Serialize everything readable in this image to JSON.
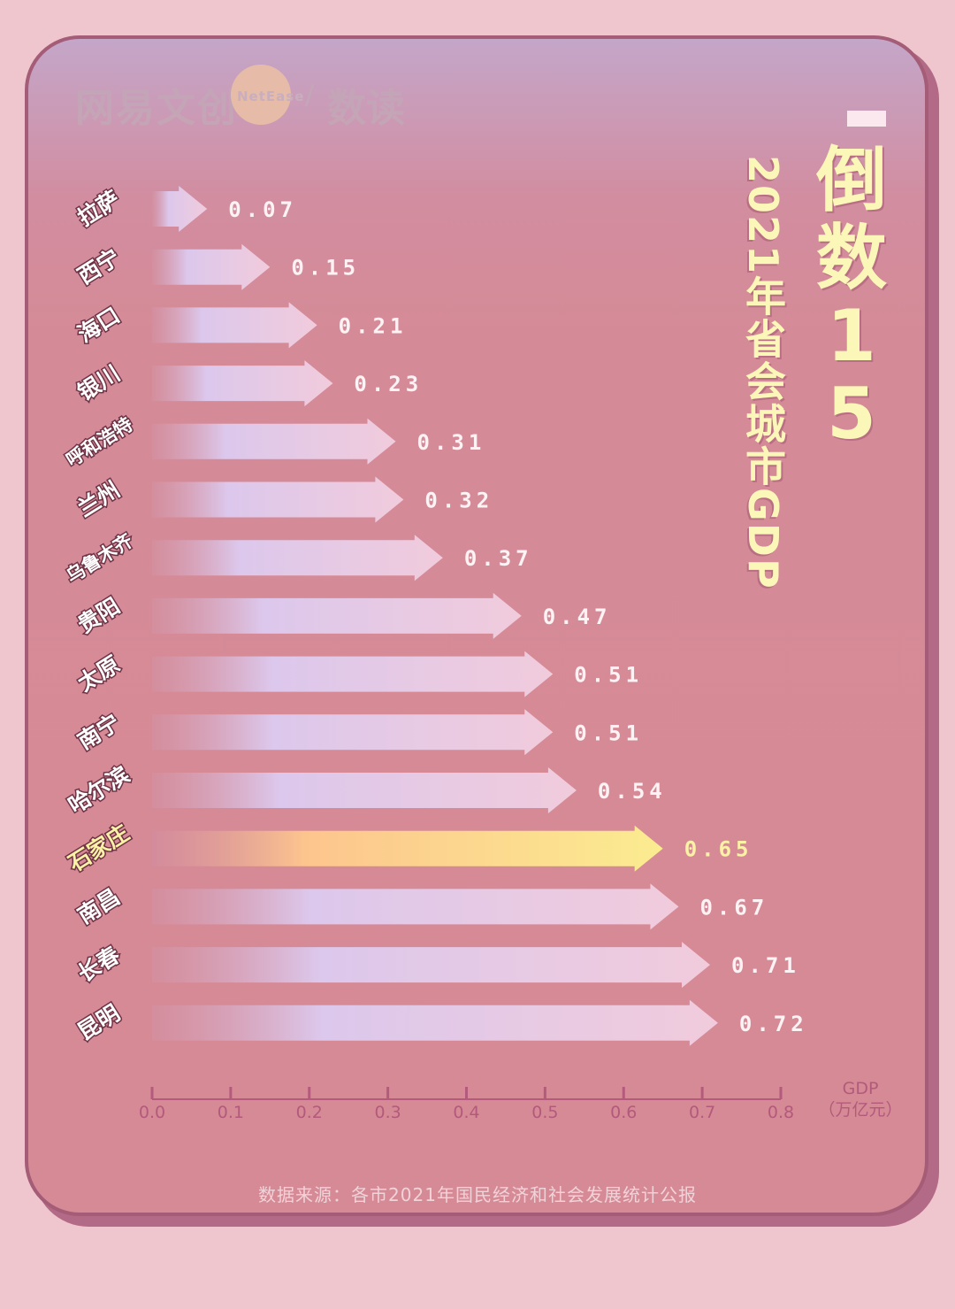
{
  "logo": {
    "brand_cn": "网易文创",
    "brand_en": "NetEase",
    "column": "数读"
  },
  "title": {
    "main": "倒数15",
    "sub": "2021年省会城市GDP"
  },
  "source": "数据来源：各市2021年国民经济和社会发展统计公报",
  "colors": {
    "bar_start": "#d391a2",
    "bar_mid": "#dcc8ec",
    "bar_end": "#f1cbdc",
    "highlight_start": "#d28da0",
    "highlight_mid": "#fdc58e",
    "highlight_end": "#fbec90",
    "label_text": "#fdf3f5",
    "highlight_label": "#fbf2a6",
    "axis": "#b45a7c"
  },
  "chart_data": {
    "type": "bar",
    "orientation": "horizontal",
    "title": "2021年省会城市GDP",
    "categories": [
      "拉萨",
      "西宁",
      "海口",
      "银川",
      "呼和浩特",
      "兰州",
      "乌鲁木齐",
      "贵阳",
      "太原",
      "南宁",
      "哈尔滨",
      "石家庄",
      "南昌",
      "长春",
      "昆明"
    ],
    "values": [
      0.07,
      0.15,
      0.21,
      0.23,
      0.31,
      0.32,
      0.37,
      0.47,
      0.51,
      0.51,
      0.54,
      0.65,
      0.67,
      0.71,
      0.72
    ],
    "value_labels": [
      "0.07",
      "0.15",
      "0.21",
      "0.23",
      "0.31",
      "0.32",
      "0.37",
      "0.47",
      "0.51",
      "0.51",
      "0.54",
      "0.65",
      "0.67",
      "0.71",
      "0.72"
    ],
    "highlight": "石家庄",
    "xlabel": "GDP",
    "xunit": "（万亿元）",
    "xlim": [
      0,
      0.8
    ],
    "xticks": [
      "0.0",
      "0.1",
      "0.2",
      "0.3",
      "0.4",
      "0.5",
      "0.6",
      "0.7",
      "0.8"
    ],
    "grid": false,
    "legend": "none"
  }
}
